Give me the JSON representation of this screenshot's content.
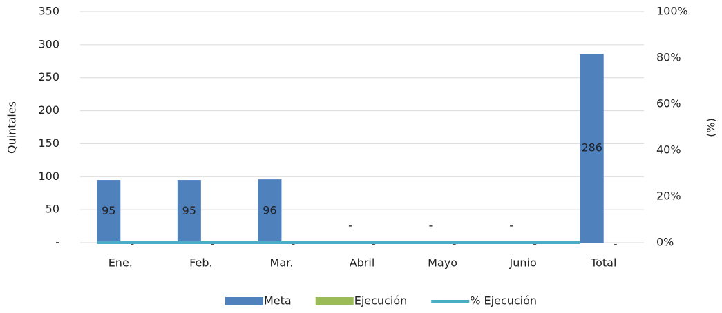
{
  "chart_data": {
    "type": "bar_line",
    "categories": [
      "Ene.",
      "Feb.",
      "Mar.",
      "Abril",
      "Mayo",
      "Junio",
      "Total"
    ],
    "series": [
      {
        "name": "Meta",
        "color": "#4f81bd",
        "type": "bar",
        "values": [
          95,
          95,
          96,
          0,
          0,
          0,
          286
        ],
        "value_labels": [
          "95",
          "95",
          "96",
          "-",
          "-",
          "-",
          "286"
        ]
      },
      {
        "name": "Ejecución",
        "color": "#9bbb59",
        "type": "bar",
        "values": [
          0,
          0,
          0,
          0,
          0,
          0,
          0
        ],
        "value_labels": [
          "-",
          "-",
          "-",
          "-",
          "-",
          "-",
          "-"
        ]
      },
      {
        "name": "% Ejecución",
        "color": "#4bacc6",
        "type": "line",
        "axis": "y2",
        "values": [
          0,
          0,
          0,
          0,
          0,
          0,
          0
        ]
      }
    ],
    "ylabel": "Quintales",
    "y2label": "(%)",
    "ylim": [
      0,
      350
    ],
    "yticks": [
      {
        "value": 0,
        "label": "-"
      },
      50,
      100,
      150,
      200,
      250,
      300,
      350
    ],
    "y2lim": [
      0,
      100
    ],
    "y2ticks": [
      {
        "value": 0,
        "label": "0%"
      },
      {
        "value": 20,
        "label": "20%"
      },
      {
        "value": 40,
        "label": "40%"
      },
      {
        "value": 60,
        "label": "60%"
      },
      {
        "value": 80,
        "label": "80%"
      },
      {
        "value": 100,
        "label": "100%"
      }
    ],
    "grid": true,
    "legend": "bottom"
  }
}
